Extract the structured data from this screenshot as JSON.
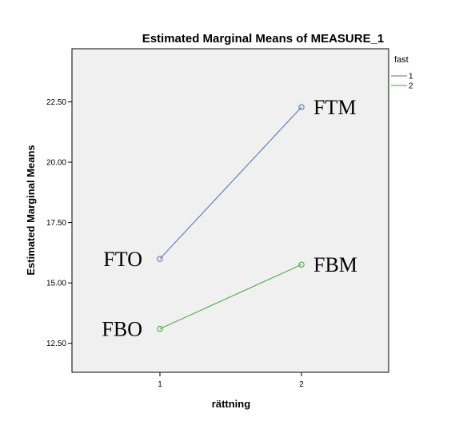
{
  "chart_data": {
    "type": "line",
    "title": "Estimated Marginal Means of MEASURE_1",
    "xlabel": "rättning",
    "ylabel": "Estimated Marginal Means",
    "categories": [
      "1",
      "2"
    ],
    "yticks": [
      "12.50",
      "15.00",
      "17.50",
      "20.00",
      "22.50"
    ],
    "ylim": [
      11.3,
      24.7
    ],
    "legend": {
      "title": "fast",
      "placement": "right"
    },
    "series": [
      {
        "name": "1",
        "color": "#4f6fb0",
        "values": [
          16.0,
          22.28
        ]
      },
      {
        "name": "2",
        "color": "#3aa33a",
        "values": [
          13.1,
          15.76
        ]
      }
    ],
    "annotations": [
      {
        "text": "FTO",
        "series": 0,
        "point": 0,
        "side": "left"
      },
      {
        "text": "FTM",
        "series": 0,
        "point": 1,
        "side": "right"
      },
      {
        "text": "FBO",
        "series": 1,
        "point": 0,
        "side": "left"
      },
      {
        "text": "FBM",
        "series": 1,
        "point": 1,
        "side": "right"
      }
    ],
    "background": "#f0f0f0",
    "grid": false
  }
}
